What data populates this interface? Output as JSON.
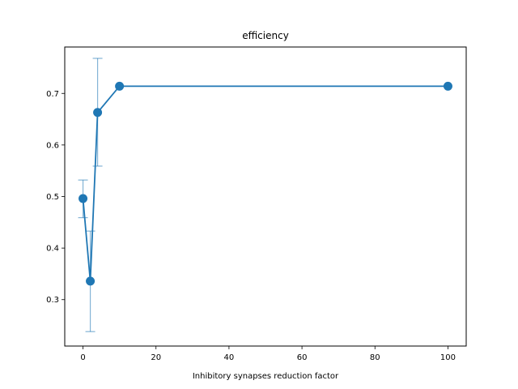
{
  "chart_data": {
    "type": "line",
    "title": "efficiency",
    "xlabel": "Inhibitory synapses reduction factor",
    "ylabel": "",
    "xlim": [
      -5,
      105
    ],
    "ylim": [
      0.21,
      0.79
    ],
    "xticks": [
      0,
      20,
      40,
      60,
      80,
      100
    ],
    "yticks": [
      0.3,
      0.4,
      0.5,
      0.6,
      0.7
    ],
    "x_tick_labels": [
      "0",
      "20",
      "40",
      "60",
      "80",
      "100"
    ],
    "y_tick_labels": [
      "0.3",
      "0.4",
      "0.5",
      "0.6",
      "0.7"
    ],
    "grid": false,
    "series": [
      {
        "color": "#1f77b4",
        "points": [
          {
            "x": 0,
            "y": 0.496,
            "err_low": 0.459,
            "err_high": 0.532
          },
          {
            "x": 2,
            "y": 0.336,
            "err_low": 0.238,
            "err_high": 0.433
          },
          {
            "x": 4,
            "y": 0.663,
            "err_low": 0.559,
            "err_high": 0.768
          },
          {
            "x": 10,
            "y": 0.714,
            "err_low": 0.714,
            "err_high": 0.714
          },
          {
            "x": 100,
            "y": 0.714,
            "err_low": 0.714,
            "err_high": 0.714
          }
        ]
      }
    ]
  }
}
